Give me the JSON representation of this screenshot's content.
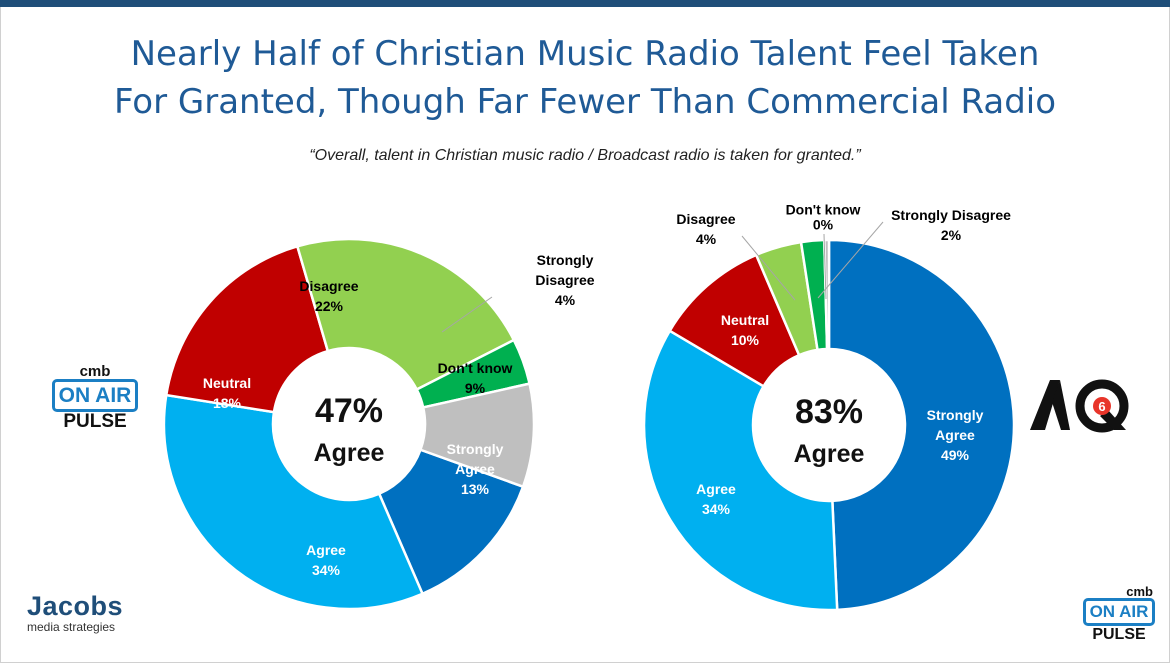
{
  "title_line1": "Nearly Half of Christian Music Radio Talent Feel Taken",
  "title_line2": "For Granted, Though Far Fewer Than Commercial Radio",
  "subtitle": "“Overall, talent in Christian music radio / Broadcast radio is taken for granted.”",
  "colors": {
    "title": "#1f5a96",
    "strongly_agree": "#0070c0",
    "agree": "#00b0f0",
    "neutral": "#c00000",
    "disagree": "#92d050",
    "strongly_disagree": "#00b050",
    "dont_know": "#bfbfbf"
  },
  "chart_data": [
    {
      "type": "pie",
      "variant": "donut",
      "center_value": "47%",
      "center_label": "Agree",
      "categories": [
        "Strongly Agree",
        "Agree",
        "Neutral",
        "Disagree",
        "Strongly Disagree",
        "Don't know"
      ],
      "values": [
        13,
        34,
        18,
        22,
        4,
        9
      ],
      "labels": [
        {
          "lines": [
            "Strongly",
            "Agree",
            "13%"
          ],
          "color": "#ffffff"
        },
        {
          "lines": [
            "Agree",
            "34%"
          ],
          "color": "#ffffff"
        },
        {
          "lines": [
            "Neutral",
            "18%"
          ],
          "color": "#ffffff"
        },
        {
          "lines": [
            "Disagree",
            "22%"
          ],
          "color": "#000000"
        },
        {
          "lines": [
            "Strongly",
            "Disagree",
            "4%"
          ],
          "color": "#000000"
        },
        {
          "lines": [
            "Don't know",
            "9%"
          ],
          "color": "#000000"
        }
      ]
    },
    {
      "type": "pie",
      "variant": "donut",
      "center_value": "83%",
      "center_label": "Agree",
      "categories": [
        "Strongly Agree",
        "Agree",
        "Neutral",
        "Disagree",
        "Strongly Disagree",
        "Don't know"
      ],
      "values": [
        49,
        34,
        10,
        4,
        2,
        0.4
      ],
      "labels": [
        {
          "lines": [
            "Strongly",
            "Agree",
            "49%"
          ],
          "color": "#ffffff"
        },
        {
          "lines": [
            "Agree",
            "34%"
          ],
          "color": "#ffffff"
        },
        {
          "lines": [
            "Neutral",
            "10%"
          ],
          "color": "#ffffff"
        },
        {
          "lines": [
            "Disagree",
            "4%"
          ],
          "color": "#000000"
        },
        {
          "lines": [
            "Strongly Disagree",
            "2%"
          ],
          "color": "#000000"
        },
        {
          "lines": [
            "Don't know",
            "0%"
          ],
          "color": "#000000"
        }
      ]
    }
  ],
  "logos": {
    "cmb": "cmb",
    "on_air": "ON AIR",
    "pulse": "PULSE",
    "jacobs_name": "Jacobs",
    "jacobs_sub": "media strategies",
    "aq": "AQ6"
  }
}
